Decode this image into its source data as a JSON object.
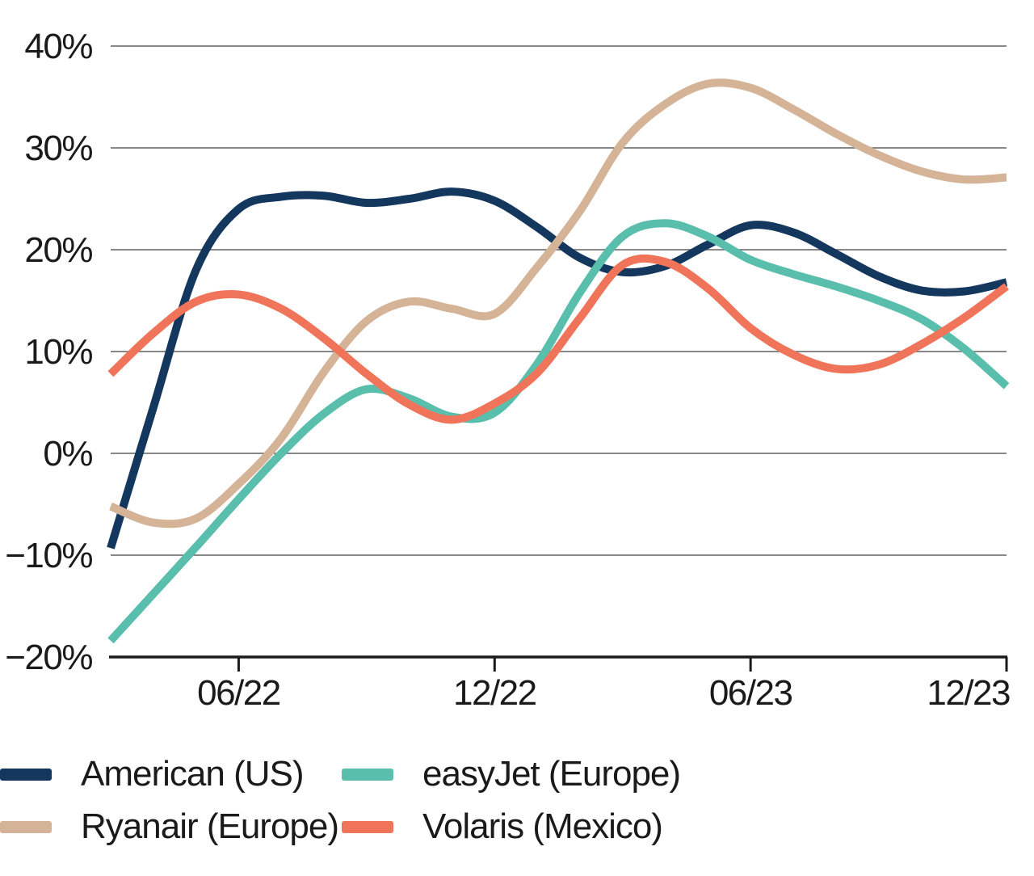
{
  "colors": {
    "background": "#FFFFFF",
    "gridline": "#616161",
    "axis": "#1A1A1A",
    "text": "#1A1A1A"
  },
  "chart_data": {
    "type": "line",
    "title": "",
    "unit": "%",
    "grid": "horizontal",
    "legend_position": "bottom",
    "x": [
      "03/22",
      "04/22",
      "05/22",
      "06/22",
      "07/22",
      "08/22",
      "09/22",
      "10/22",
      "11/22",
      "12/22",
      "01/23",
      "02/23",
      "03/23",
      "04/23",
      "05/23",
      "06/23",
      "07/23",
      "08/23",
      "09/23",
      "10/23",
      "11/23",
      "12/23"
    ],
    "x_axis_tick_labels": [
      "06/22",
      "12/22",
      "06/23",
      "12/23"
    ],
    "x_axis_tick_indices": [
      3,
      9,
      15,
      21
    ],
    "y_axis_tick_labels": [
      "40%",
      "30%",
      "20%",
      "10%",
      "0%",
      "−10%",
      "−20%"
    ],
    "y_axis_tick_values": [
      40,
      30,
      20,
      10,
      0,
      -10,
      -20
    ],
    "ylim": [
      -20,
      40
    ],
    "series": [
      {
        "name": "American (US)",
        "color": "#14375D",
        "values": [
          -9.3,
          4.5,
          18.0,
          24.0,
          25.2,
          25.3,
          24.6,
          25.0,
          25.7,
          24.8,
          22.2,
          19.2,
          17.8,
          18.4,
          20.5,
          22.4,
          21.7,
          19.6,
          17.4,
          16.0,
          15.9,
          16.8
        ]
      },
      {
        "name": "Ryanair (Europe)",
        "color": "#D4B397",
        "values": [
          -5.2,
          -6.8,
          -6.4,
          -3.0,
          1.5,
          8.0,
          13.0,
          14.9,
          14.2,
          13.7,
          18.3,
          23.8,
          30.5,
          34.3,
          36.3,
          35.9,
          33.8,
          31.4,
          29.3,
          27.7,
          26.9,
          27.1
        ]
      },
      {
        "name": "easyJet (Europe)",
        "color": "#5ABEAC",
        "values": [
          -18.4,
          -13.8,
          -9.2,
          -4.5,
          0.0,
          3.9,
          6.3,
          5.4,
          3.6,
          4.0,
          8.8,
          15.8,
          21.3,
          22.6,
          21.3,
          19.0,
          17.6,
          16.4,
          15.0,
          13.2,
          10.3,
          6.6
        ]
      },
      {
        "name": "Volaris (Mexico)",
        "color": "#EF7459",
        "values": [
          7.8,
          11.8,
          14.9,
          15.6,
          14.2,
          11.3,
          7.8,
          4.8,
          3.3,
          4.9,
          7.9,
          13.3,
          18.5,
          18.8,
          16.2,
          12.3,
          9.7,
          8.3,
          8.7,
          10.7,
          13.3,
          16.4
        ]
      }
    ]
  }
}
